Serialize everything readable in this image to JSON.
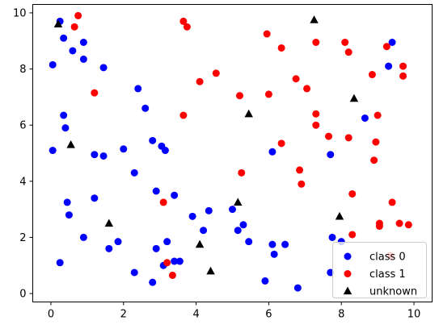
{
  "chart_data": {
    "type": "scatter",
    "xlim": [
      -0.5,
      10.5
    ],
    "ylim": [
      -0.3,
      10.3
    ],
    "x_ticks": [
      "0",
      "2",
      "4",
      "6",
      "8",
      "10"
    ],
    "y_ticks": [
      "0",
      "2",
      "4",
      "6",
      "8",
      "10"
    ],
    "grid": false,
    "legend_position": "lower-right",
    "series": [
      {
        "name": "class 0",
        "color": "#0000ff",
        "marker": "circle",
        "points": [
          [
            0.25,
            9.7
          ],
          [
            0.35,
            9.1
          ],
          [
            0.6,
            8.65
          ],
          [
            0.9,
            8.95
          ],
          [
            0.9,
            8.35
          ],
          [
            0.05,
            8.15
          ],
          [
            1.45,
            8.05
          ],
          [
            0.35,
            6.35
          ],
          [
            0.4,
            5.9
          ],
          [
            0.05,
            5.1
          ],
          [
            1.2,
            4.95
          ],
          [
            1.45,
            4.9
          ],
          [
            2.0,
            5.15
          ],
          [
            2.3,
            4.3
          ],
          [
            2.4,
            7.3
          ],
          [
            2.6,
            6.6
          ],
          [
            2.8,
            5.45
          ],
          [
            3.05,
            5.25
          ],
          [
            3.15,
            5.1
          ],
          [
            2.9,
            3.65
          ],
          [
            3.4,
            3.5
          ],
          [
            0.45,
            3.25
          ],
          [
            0.5,
            2.8
          ],
          [
            1.2,
            3.4
          ],
          [
            0.9,
            2.0
          ],
          [
            1.85,
            1.85
          ],
          [
            1.6,
            1.6
          ],
          [
            2.3,
            0.75
          ],
          [
            2.8,
            0.4
          ],
          [
            2.9,
            1.6
          ],
          [
            3.2,
            1.85
          ],
          [
            3.1,
            1.0
          ],
          [
            3.4,
            1.15
          ],
          [
            3.55,
            1.15
          ],
          [
            3.9,
            2.75
          ],
          [
            4.2,
            2.25
          ],
          [
            4.35,
            2.95
          ],
          [
            5.0,
            3.0
          ],
          [
            5.15,
            2.25
          ],
          [
            5.3,
            2.45
          ],
          [
            5.45,
            1.85
          ],
          [
            6.1,
            1.75
          ],
          [
            6.15,
            1.4
          ],
          [
            6.45,
            1.75
          ],
          [
            5.9,
            0.45
          ],
          [
            6.8,
            0.2
          ],
          [
            6.1,
            5.05
          ],
          [
            7.7,
            4.95
          ],
          [
            7.7,
            0.75
          ],
          [
            7.75,
            2.0
          ],
          [
            8.0,
            1.85
          ],
          [
            8.65,
            6.25
          ],
          [
            9.3,
            8.1
          ],
          [
            9.4,
            8.95
          ],
          [
            0.25,
            1.1
          ]
        ]
      },
      {
        "name": "class 1",
        "color": "#ff0000",
        "marker": "circle",
        "points": [
          [
            0.75,
            9.9
          ],
          [
            0.65,
            9.5
          ],
          [
            1.2,
            7.15
          ],
          [
            3.65,
            9.7
          ],
          [
            3.75,
            9.5
          ],
          [
            4.1,
            7.55
          ],
          [
            4.55,
            7.85
          ],
          [
            3.65,
            6.35
          ],
          [
            5.2,
            7.05
          ],
          [
            5.95,
            9.25
          ],
          [
            6.35,
            8.75
          ],
          [
            6.0,
            7.1
          ],
          [
            6.75,
            7.65
          ],
          [
            7.05,
            7.3
          ],
          [
            7.3,
            8.95
          ],
          [
            8.1,
            8.95
          ],
          [
            8.2,
            8.6
          ],
          [
            7.3,
            6.4
          ],
          [
            7.3,
            6.0
          ],
          [
            7.65,
            5.6
          ],
          [
            8.2,
            5.55
          ],
          [
            6.35,
            5.35
          ],
          [
            5.25,
            4.3
          ],
          [
            6.85,
            4.4
          ],
          [
            6.9,
            3.9
          ],
          [
            8.85,
            7.8
          ],
          [
            9.25,
            8.8
          ],
          [
            9.0,
            6.35
          ],
          [
            8.95,
            5.4
          ],
          [
            8.9,
            4.75
          ],
          [
            8.3,
            3.55
          ],
          [
            9.05,
            2.5
          ],
          [
            9.05,
            2.4
          ],
          [
            9.4,
            3.25
          ],
          [
            9.6,
            2.5
          ],
          [
            9.85,
            2.45
          ],
          [
            9.7,
            8.1
          ],
          [
            9.7,
            7.75
          ],
          [
            8.3,
            2.1
          ],
          [
            3.1,
            3.25
          ],
          [
            3.35,
            0.65
          ],
          [
            3.2,
            1.1
          ],
          [
            9.35,
            1.35
          ]
        ]
      },
      {
        "name": "unknown",
        "color": "#000000",
        "marker": "triangle",
        "points": [
          [
            0.2,
            9.6
          ],
          [
            0.55,
            5.3
          ],
          [
            1.6,
            2.5
          ],
          [
            4.1,
            1.75
          ],
          [
            4.4,
            0.8
          ],
          [
            5.15,
            3.25
          ],
          [
            5.45,
            6.4
          ],
          [
            7.25,
            9.75
          ],
          [
            7.95,
            2.75
          ],
          [
            8.35,
            6.95
          ]
        ]
      }
    ]
  }
}
